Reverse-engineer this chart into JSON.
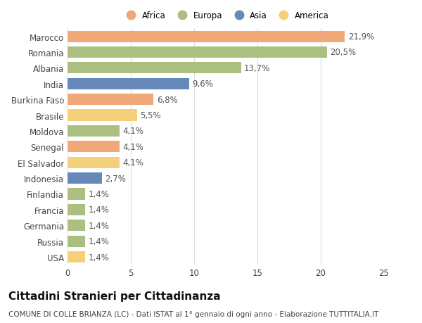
{
  "countries": [
    "Marocco",
    "Romania",
    "Albania",
    "India",
    "Burkina Faso",
    "Brasile",
    "Moldova",
    "Senegal",
    "El Salvador",
    "Indonesia",
    "Finlandia",
    "Francia",
    "Germania",
    "Russia",
    "USA"
  ],
  "values": [
    21.9,
    20.5,
    13.7,
    9.6,
    6.8,
    5.5,
    4.1,
    4.1,
    4.1,
    2.7,
    1.4,
    1.4,
    1.4,
    1.4,
    1.4
  ],
  "labels": [
    "21,9%",
    "20,5%",
    "13,7%",
    "9,6%",
    "6,8%",
    "5,5%",
    "4,1%",
    "4,1%",
    "4,1%",
    "2,7%",
    "1,4%",
    "1,4%",
    "1,4%",
    "1,4%",
    "1,4%"
  ],
  "continents": [
    "Africa",
    "Europa",
    "Europa",
    "Asia",
    "Africa",
    "America",
    "Europa",
    "Africa",
    "America",
    "Asia",
    "Europa",
    "Europa",
    "Europa",
    "Europa",
    "America"
  ],
  "continent_colors": {
    "Africa": "#F0A878",
    "Europa": "#AABF80",
    "Asia": "#6688BB",
    "America": "#F5D07A"
  },
  "legend_order": [
    "Africa",
    "Europa",
    "Asia",
    "America"
  ],
  "title": "Cittadini Stranieri per Cittadinanza",
  "subtitle": "COMUNE DI COLLE BRIANZA (LC) - Dati ISTAT al 1° gennaio di ogni anno - Elaborazione TUTTITALIA.IT",
  "xlim": [
    0,
    25
  ],
  "xticks": [
    0,
    5,
    10,
    15,
    20,
    25
  ],
  "background_color": "#ffffff",
  "grid_color": "#dddddd",
  "bar_height": 0.72,
  "label_fontsize": 8.5,
  "tick_fontsize": 8.5,
  "title_fontsize": 11,
  "subtitle_fontsize": 7.5
}
